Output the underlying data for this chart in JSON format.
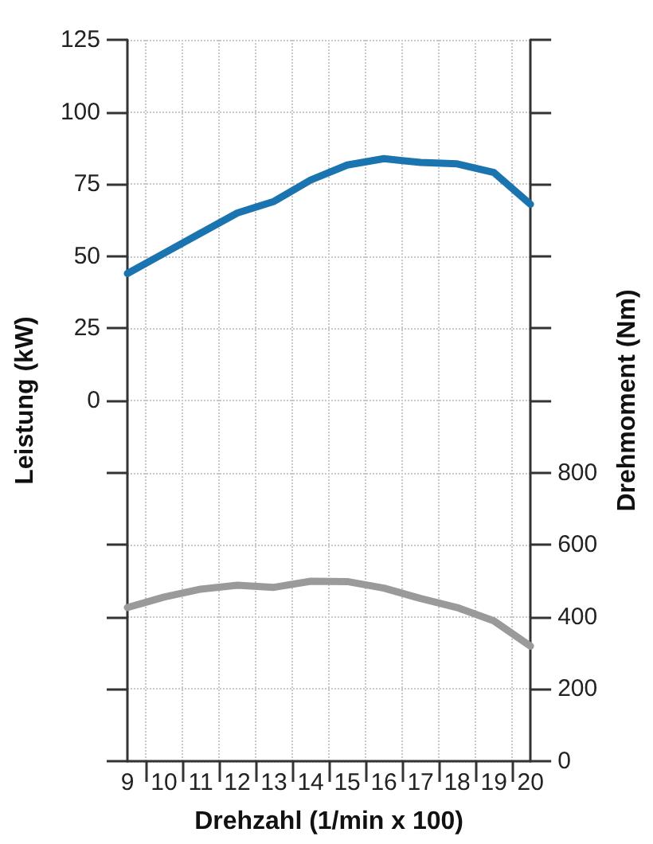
{
  "chart_data": {
    "type": "line",
    "xlabel": "Drehzahl (1/min x 100)",
    "ylabel": "Leistung (kW)",
    "y2label": "Drehmoment (Nm)",
    "x": [
      9,
      10,
      11,
      12,
      13,
      14,
      15,
      16,
      17,
      18,
      19,
      20
    ],
    "series": [
      {
        "color": "#1a74b0",
        "values": [
          44,
          51,
          58,
          65,
          69,
          76.4,
          81.6,
          83.8,
          82.5,
          82,
          79,
          68
        ]
      },
      {
        "color": "#9a9a9a",
        "axis": "y2",
        "values": [
          426,
          455,
          477,
          488,
          482,
          499,
          498,
          480,
          451,
          426,
          389,
          319
        ]
      }
    ],
    "xlim": [
      9,
      20
    ],
    "xticks": [
      9,
      {
        "value": 9.5,
        "label": null
      },
      10,
      {
        "value": 10.5,
        "label": null
      },
      11,
      {
        "value": 11.5,
        "label": null
      },
      12,
      {
        "value": 12.5,
        "label": null
      },
      13,
      {
        "value": 13.5,
        "label": null
      },
      14,
      {
        "value": 14.5,
        "label": null
      },
      15,
      {
        "value": 15.5,
        "label": null
      },
      16,
      {
        "value": 16.5,
        "label": null
      },
      17,
      {
        "value": 17.5,
        "label": null
      },
      18,
      {
        "value": 18.5,
        "label": null
      },
      19,
      {
        "value": 19.5,
        "label": null
      },
      20
    ],
    "ylim": [
      -125,
      125
    ],
    "yticks": [
      {
        "value": -125,
        "label": null
      },
      {
        "value": -100,
        "label": null
      },
      {
        "value": -75,
        "label": null
      },
      {
        "value": -50,
        "label": null
      },
      {
        "value": -25,
        "label": null
      },
      0,
      25,
      50,
      75,
      100,
      125
    ],
    "y2lim": [
      0,
      2000
    ],
    "y2ticks": [
      0,
      200,
      400,
      600,
      800,
      {
        "value": 1000,
        "label": null
      },
      {
        "value": 1200,
        "label": null
      },
      {
        "value": 1400,
        "label": null
      },
      {
        "value": 1600,
        "label": null
      },
      {
        "value": 1800,
        "label": null
      },
      {
        "value": 2000,
        "label": null
      }
    ],
    "grid": true,
    "marker": "none",
    "line_style": "solid"
  }
}
